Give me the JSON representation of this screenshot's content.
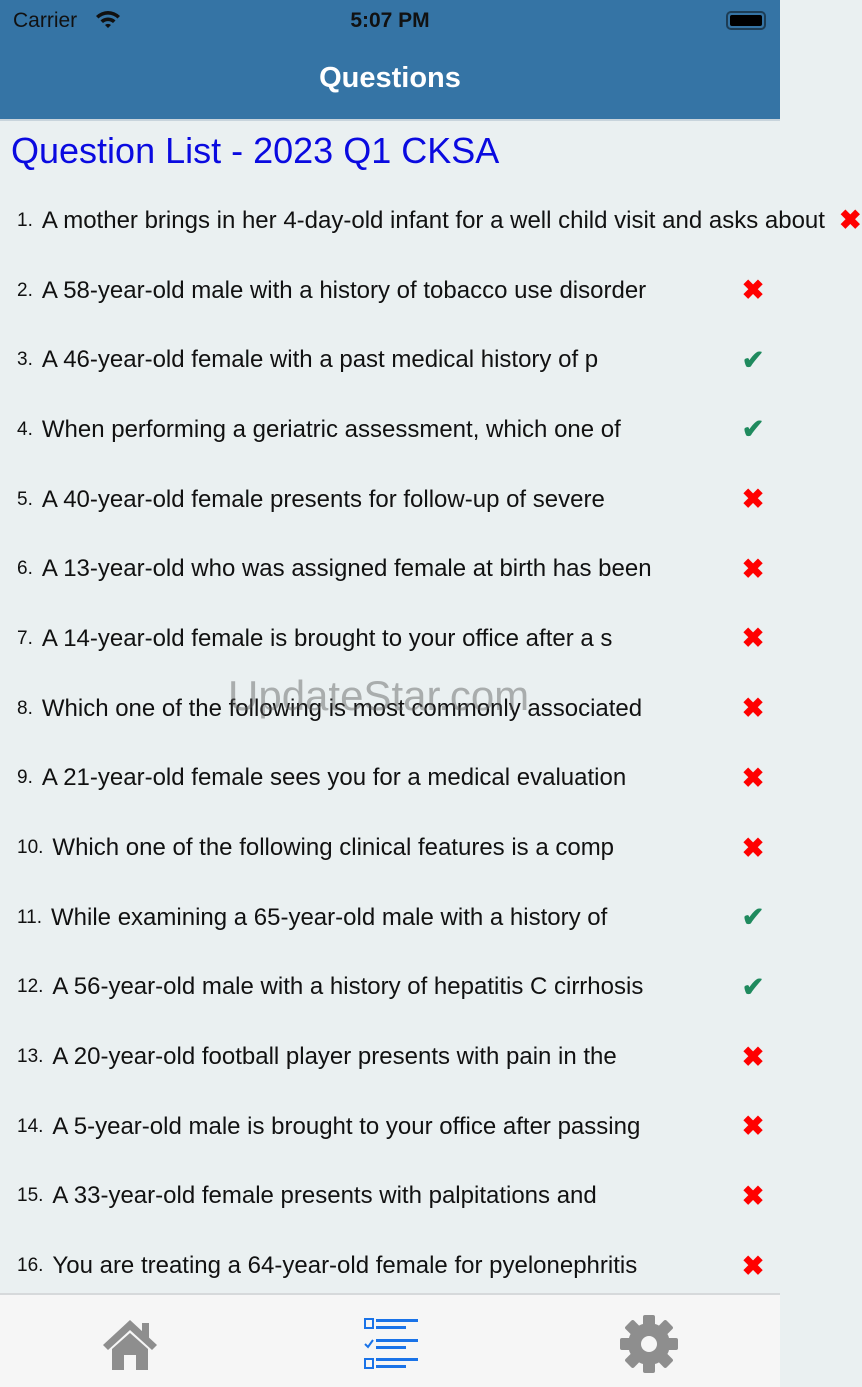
{
  "status_bar": {
    "carrier": "Carrier",
    "time": "5:07 PM"
  },
  "nav": {
    "title": "Questions"
  },
  "heading": "Question List - 2023 Q1 CKSA",
  "questions": [
    {
      "num": "1.",
      "text": "A mother brings in her 4-day-old infant for a well child visit and asks about",
      "result": "wrong"
    },
    {
      "num": "2.",
      "text": "A 58-year-old male with a history of tobacco use disorder",
      "result": "wrong"
    },
    {
      "num": "3.",
      "text": "A 46-year-old female with a past medical history of p",
      "result": "correct"
    },
    {
      "num": "4.",
      "text": "When performing a geriatric assessment, which one of",
      "result": "correct"
    },
    {
      "num": "5.",
      "text": "A 40-year-old female presents for follow-up of severe",
      "result": "wrong"
    },
    {
      "num": "6.",
      "text": "A 13-year-old who was assigned female at birth has been",
      "result": "wrong"
    },
    {
      "num": "7.",
      "text": "A 14-year-old female is brought to your office after a s",
      "result": "wrong"
    },
    {
      "num": "8.",
      "text": "Which one of the following is most commonly associated",
      "result": "wrong"
    },
    {
      "num": "9.",
      "text": "A 21-year-old female sees you for a medical evaluation",
      "result": "wrong"
    },
    {
      "num": "10.",
      "text": "Which one of the following clinical features is a comp",
      "result": "wrong"
    },
    {
      "num": "11.",
      "text": "While examining a 65-year-old male with a history of",
      "result": "correct"
    },
    {
      "num": "12.",
      "text": "A 56-year-old male with a history of hepatitis C cirrhosis",
      "result": "correct"
    },
    {
      "num": "13.",
      "text": "A 20-year-old football player presents with pain in the",
      "result": "wrong"
    },
    {
      "num": "14.",
      "text": "A 5-year-old male is brought to your office after passing",
      "result": "wrong"
    },
    {
      "num": "15.",
      "text": "A 33-year-old female presents with palpitations and",
      "result": "wrong"
    },
    {
      "num": "16.",
      "text": "You are treating a 64-year-old female for pyelonephritis",
      "result": "wrong"
    }
  ],
  "icons": {
    "wrong": "✖",
    "correct": "✔"
  },
  "colors": {
    "header": "#3574a5",
    "heading": "#0a0ae0",
    "wrong": "#ff0000",
    "correct": "#1f8a5e",
    "active_tab": "#1a73e8",
    "inactive_tab": "#8e8e8e"
  },
  "tabs": [
    {
      "name": "home",
      "active": false
    },
    {
      "name": "questions",
      "active": true
    },
    {
      "name": "settings",
      "active": false
    }
  ],
  "watermark": "UpdateStar.com"
}
